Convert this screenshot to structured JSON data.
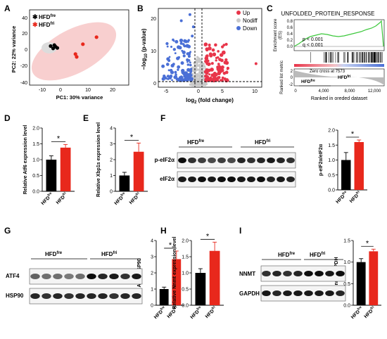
{
  "colors": {
    "black": "#000000",
    "red": "#e8281c",
    "pca_ellipse_red": "#f8cfcf",
    "pca_ellipse_grey": "#dcdcdc",
    "up": "#e8354a",
    "nodiff": "#c9c9c9",
    "down": "#4a6fd6",
    "gsea_line": "#3cc83c"
  },
  "groups": {
    "fre_base": "HFD",
    "fre_sup": "fre",
    "fri_base": "HFD",
    "fri_sup": "fri"
  },
  "panels": {
    "A": "A",
    "B": "B",
    "C": "C",
    "D": "D",
    "E": "E",
    "F": "F",
    "G": "G",
    "H": "H",
    "I": "I"
  },
  "sig_star": "*",
  "pca": {
    "xlabel": "PC1: 30% variance",
    "ylabel": "PC2: 22% variance",
    "x_ticks": [
      "-10",
      "0",
      "10",
      "20"
    ],
    "y_ticks": [
      "40",
      "20",
      "0",
      "-20",
      "-40"
    ],
    "legend_fre": "HFD",
    "legend_fri": "HFD"
  },
  "volcano": {
    "ylabel": "−log10 (p-value)",
    "xlabel": "log2 (fold change)",
    "x_ticks": [
      "-5",
      "0",
      "5",
      "10"
    ],
    "y_ticks": [
      "20",
      "10",
      "0"
    ],
    "legend": [
      "Up",
      "Nodiff",
      "Down"
    ]
  },
  "gsea": {
    "title": "UNFOLDED_PROTEIN_RESPONSE",
    "es_label": "Enrichment score (ES)",
    "es_ticks": [
      "0.8",
      "0.6",
      "0.4",
      "0.2",
      "0.0"
    ],
    "rank_label": "Ranked list metric",
    "rank_ticks": [
      "2",
      "0",
      "-2"
    ],
    "p_text": "p < 0.001",
    "q_text": "q < 0.001",
    "zero_cross": "Zero cross at 7573",
    "x_ticks": [
      "0",
      "4,000",
      "8,000",
      "12,000"
    ],
    "xlabel": "Ranked in oreded dataset"
  },
  "chart_data": [
    {
      "type": "scatter",
      "panel": "A",
      "xlabel": "PC1: 30% variance",
      "ylabel": "PC2: 22% variance",
      "xlim": [
        -15,
        25
      ],
      "ylim": [
        -40,
        40
      ],
      "series": [
        {
          "name": "HFDfre",
          "x": [
            -6.5,
            -5.0,
            -4.5,
            -3.8,
            -5.5
          ],
          "y": [
            1.5,
            2.5,
            0.8,
            -0.5,
            -1.0
          ]
        },
        {
          "name": "HFDfri",
          "x": [
            12,
            6.5,
            3.5,
            4.0
          ],
          "y": [
            11,
            3.5,
            -7,
            -10
          ]
        }
      ]
    },
    {
      "type": "bar",
      "panel": "D",
      "ylabel": "Relative Atf6 expression level",
      "categories": [
        "HFDfre",
        "HFDfri"
      ],
      "values": [
        1.0,
        1.38
      ],
      "errors": [
        0.12,
        0.1
      ],
      "ylim": [
        0,
        2.0
      ],
      "yticks": [
        "0.0",
        "0.5",
        "1.0",
        "1.5",
        "2.0"
      ]
    },
    {
      "type": "bar",
      "panel": "E",
      "ylabel": "Relative Xbp1s expression level",
      "categories": [
        "HFDfre",
        "HFDfri"
      ],
      "values": [
        1.0,
        2.5
      ],
      "errors": [
        0.2,
        0.55
      ],
      "ylim": [
        0,
        4
      ],
      "yticks": [
        "0",
        "1",
        "2",
        "3",
        "4"
      ]
    },
    {
      "type": "bar",
      "panel": "F",
      "ylabel": "p-eIF2α/eIF2α",
      "categories": [
        "HFDfre",
        "HFDfri"
      ],
      "values": [
        1.0,
        1.6
      ],
      "errors": [
        0.25,
        0.07
      ],
      "ylim": [
        0,
        2.0
      ],
      "yticks": [
        "0.0",
        "0.5",
        "1.0",
        "1.5",
        "2.0"
      ]
    },
    {
      "type": "bar",
      "panel": "G",
      "ylabel": "ATF4/HSP90",
      "categories": [
        "HFDfre",
        "HFDfri"
      ],
      "values": [
        1.0,
        2.85
      ],
      "errors": [
        0.12,
        0.5
      ],
      "ylim": [
        0,
        4
      ],
      "yticks": [
        "0",
        "1",
        "2",
        "3",
        "4"
      ]
    },
    {
      "type": "bar",
      "panel": "H",
      "ylabel": "Relative Nnmt expression level",
      "categories": [
        "HFDfre",
        "HFDfri"
      ],
      "values": [
        1.0,
        1.68
      ],
      "errors": [
        0.13,
        0.27
      ],
      "ylim": [
        0,
        2.0
      ],
      "yticks": [
        "0.0",
        "0.5",
        "1.0",
        "1.5",
        "2.0"
      ]
    },
    {
      "type": "bar",
      "panel": "I",
      "ylabel": "Nnmt/GAPDH",
      "categories": [
        "HFDfre",
        "HFDfri"
      ],
      "values": [
        1.0,
        1.25
      ],
      "errors": [
        0.08,
        0.05
      ],
      "ylim": [
        0,
        1.5
      ],
      "yticks": [
        "0.0",
        "0.5",
        "1.0",
        "1.5"
      ]
    }
  ],
  "blots": {
    "F": {
      "rows": [
        "p-eIF2α",
        "eIF2α"
      ]
    },
    "G": {
      "rows": [
        "ATF4",
        "HSP90"
      ]
    },
    "I": {
      "rows": [
        "NNMT",
        "GAPDH"
      ]
    }
  }
}
